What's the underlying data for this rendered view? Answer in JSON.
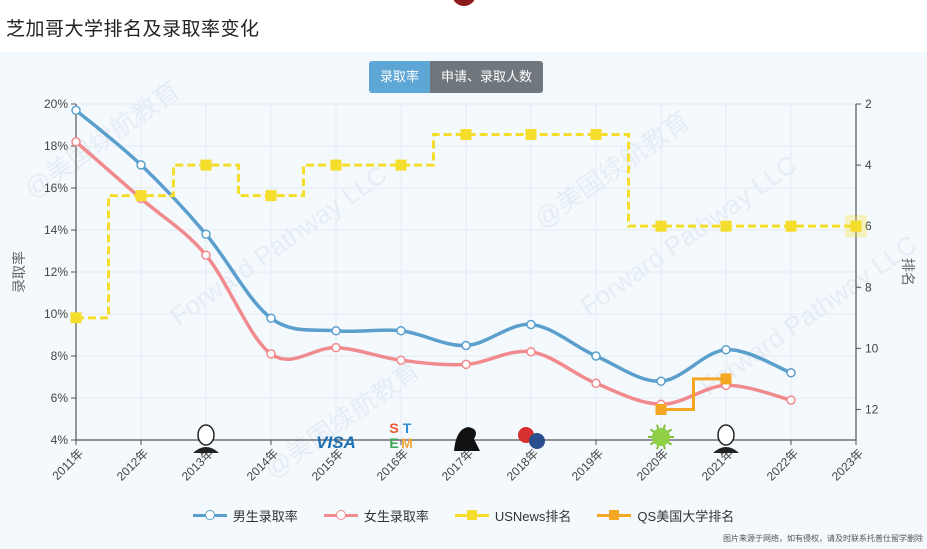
{
  "page": {
    "title": "芝加哥大学排名及录取率变化",
    "source_note": "图片来源于网络，如有侵权，请及时联系托普仕留学删除"
  },
  "tabs": [
    {
      "label": "录取率",
      "active": true
    },
    {
      "label": "申请、录取人数",
      "active": false
    }
  ],
  "watermarks": [
    "@美国续航教育",
    "Forward Pathway LLC"
  ],
  "colors": {
    "male": "#5b9fcd",
    "female": "#f08a8d",
    "usnews": "#f5dd2b",
    "qs": "#f5a623",
    "grid": "#e3ecf4",
    "axis": "#555555"
  },
  "chart_data": {
    "type": "line",
    "title": "芝加哥大学排名及录取率变化",
    "categories": [
      "2011年",
      "2012年",
      "2013年",
      "2014年",
      "2015年",
      "2016年",
      "2017年",
      "2018年",
      "2019年",
      "2020年",
      "2021年",
      "2022年",
      "2023年"
    ],
    "ylabel_left": "录取率",
    "ylabel_right": "排名",
    "left_axis": {
      "min": 4,
      "max": 20,
      "ticks": [
        "4%",
        "6%",
        "8%",
        "10%",
        "12%",
        "14%",
        "16%",
        "18%",
        "20%"
      ]
    },
    "right_axis": {
      "min": 2,
      "max": 13,
      "inverted": true,
      "ticks": [
        "2",
        "4",
        "6",
        "8",
        "10",
        "12"
      ]
    },
    "grid": true,
    "legend_position": "bottom",
    "series": [
      {
        "name": "男生录取率",
        "axis": "left",
        "style": "smooth",
        "marker": "circle",
        "values": [
          19.7,
          17.1,
          13.8,
          9.8,
          9.2,
          9.2,
          8.5,
          9.5,
          8.0,
          6.8,
          8.3,
          7.2,
          null
        ]
      },
      {
        "name": "女生录取率",
        "axis": "left",
        "style": "smooth",
        "marker": "circle",
        "values": [
          18.2,
          15.5,
          12.8,
          8.1,
          8.4,
          7.8,
          7.6,
          8.2,
          6.7,
          5.7,
          6.6,
          5.9,
          null
        ]
      },
      {
        "name": "USNews排名",
        "axis": "right",
        "style": "step-dashed",
        "marker": "square",
        "values": [
          9,
          5,
          4,
          5,
          4,
          4,
          3,
          3,
          3,
          6,
          6,
          6,
          6
        ]
      },
      {
        "name": "QS美国大学排名",
        "axis": "right",
        "style": "step",
        "marker": "square",
        "values": [
          null,
          null,
          null,
          null,
          null,
          null,
          null,
          null,
          null,
          12,
          11,
          null,
          null
        ]
      }
    ],
    "event_icons": [
      {
        "year": "2013年",
        "icon": "obama-portrait-icon"
      },
      {
        "year": "2015年",
        "icon": "visa-icon",
        "text": "VISA"
      },
      {
        "year": "2016年",
        "icon": "stem-icon",
        "text": "STEM"
      },
      {
        "year": "2017年",
        "icon": "trump-silhouette-icon"
      },
      {
        "year": "2018年",
        "icon": "trade-war-icon"
      },
      {
        "year": "2020年",
        "icon": "covid-virus-icon"
      },
      {
        "year": "2021年",
        "icon": "biden-portrait-icon"
      }
    ]
  }
}
